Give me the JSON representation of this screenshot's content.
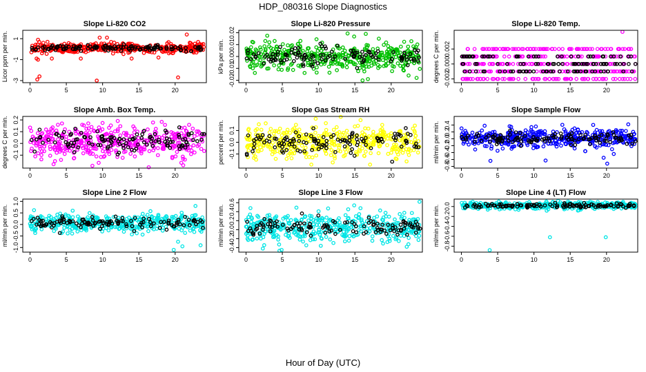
{
  "figure": {
    "title": "HDP_080316  Slope Diagnostics",
    "xlabel": "Hour of Day (UTC)"
  },
  "chart_data": [
    {
      "id": "co2",
      "type": "scatter",
      "title": "Slope Li-820 CO2",
      "ylabel": "Licor ppm per min.",
      "xlim": [
        -1,
        24.3
      ],
      "ylim": [
        -3.2,
        1.8
      ],
      "xticks": [
        0,
        5,
        10,
        15,
        20
      ],
      "yticks": [
        -3,
        -1,
        1
      ],
      "yticklabels": [
        "-3",
        "-1",
        "1"
      ],
      "color": "#ff0000",
      "center": 0.1,
      "spread": 0.22,
      "count": 420,
      "black_count": 120,
      "outliers": [
        [
          1.0,
          -2.9
        ],
        [
          1.3,
          -2.6
        ],
        [
          0.9,
          -0.9
        ],
        [
          1.1,
          -1.0
        ],
        [
          3.0,
          -0.9
        ],
        [
          7.0,
          -0.9
        ],
        [
          9.2,
          -3.0
        ],
        [
          9.6,
          1.1
        ],
        [
          10.6,
          1.1
        ],
        [
          14.0,
          -0.9
        ],
        [
          16.2,
          -0.2
        ],
        [
          17.7,
          -0.8
        ],
        [
          20.4,
          -2.7
        ],
        [
          21.6,
          1.4
        ],
        [
          1.1,
          0.9
        ]
      ]
    },
    {
      "id": "pressure",
      "type": "scatter",
      "title": "Slope Li-820 Pressure",
      "ylabel": "kPa per min.",
      "xlim": [
        -1,
        24.3
      ],
      "ylim": [
        -0.022,
        0.022
      ],
      "xticks": [
        0,
        5,
        10,
        15,
        20
      ],
      "yticks": [
        -0.02,
        -0.01,
        0.0,
        0.01,
        0.02
      ],
      "yticklabels": [
        "-0.02",
        "-0.01",
        "0.00",
        "0.01",
        "0.02"
      ],
      "color": "#00c000",
      "center": 0.0,
      "spread": 0.006,
      "count": 420,
      "black_count": 120,
      "outliers": [
        [
          16.5,
          0.019
        ],
        [
          16.8,
          -0.019
        ],
        [
          22.4,
          -0.016
        ],
        [
          23.5,
          -0.018
        ],
        [
          18.3,
          0.015
        ],
        [
          3.2,
          0.012
        ]
      ]
    },
    {
      "id": "temp",
      "type": "scatter",
      "title": "Slope Li-820 Temp.",
      "ylabel": "degrees C per min.",
      "xlim": [
        -1,
        24.3
      ],
      "ylim": [
        -0.0025,
        0.0045
      ],
      "xticks": [
        0,
        5,
        10,
        15,
        20
      ],
      "yticks": [
        -0.002,
        0.0,
        0.002
      ],
      "yticklabels": [
        "-0.002",
        "0.000",
        "0.002"
      ],
      "color": "#ff00ff",
      "levels": [
        -0.002,
        -0.001,
        0.0,
        0.001,
        0.002
      ],
      "count": 420,
      "black_count": 120,
      "outliers": [
        [
          22.2,
          0.0043
        ]
      ]
    },
    {
      "id": "boxtemp",
      "type": "scatter",
      "title": "Slope Amb. Box Temp.",
      "ylabel": "degrees C per min.",
      "xlim": [
        -1,
        24.3
      ],
      "ylim": [
        -0.21,
        0.23
      ],
      "xticks": [
        0,
        5,
        10,
        15,
        20
      ],
      "yticks": [
        -0.1,
        0.0,
        0.1,
        0.2
      ],
      "yticklabels": [
        "-0.1",
        "0.0",
        "0.1",
        "0.2"
      ],
      "color": "#ff00ff",
      "center": 0.02,
      "spread": 0.07,
      "count": 420,
      "black_count": 120,
      "outliers": [
        [
          8.6,
          -0.19
        ],
        [
          4.4,
          0.17
        ]
      ]
    },
    {
      "id": "rh",
      "type": "scatter",
      "title": "Slope Gas Stream RH",
      "ylabel": "percent per min.",
      "xlim": [
        -1,
        24.3
      ],
      "ylim": [
        -0.22,
        0.22
      ],
      "xticks": [
        0,
        5,
        10,
        15,
        20
      ],
      "yticks": [
        -0.1,
        0.0,
        0.1
      ],
      "yticklabels": [
        "-0.1",
        "0.0",
        "0.1"
      ],
      "color": "#ffff00",
      "center": 0.0,
      "spread": 0.075,
      "count": 420,
      "black_count": 120,
      "outliers": [
        [
          9.6,
          0.2
        ],
        [
          9.0,
          -0.19
        ]
      ]
    },
    {
      "id": "sampleflow",
      "type": "scatter",
      "title": "Slope Sample Flow",
      "ylabel": "ml/min per min.",
      "xlim": [
        -1,
        24.3
      ],
      "ylim": [
        -0.85,
        0.65
      ],
      "xticks": [
        0,
        5,
        10,
        15,
        20
      ],
      "yticks": [
        -0.8,
        -0.6,
        -0.4,
        -0.2,
        0.0,
        0.2,
        0.4
      ],
      "yticklabels": [
        "-0.8",
        "-0.6",
        "-0.4",
        "-0.2",
        "0.0",
        "0.2",
        "0.4"
      ],
      "color": "#0000ff",
      "center": 0.02,
      "spread": 0.13,
      "count": 420,
      "black_count": 120,
      "outliers": [
        [
          4.0,
          -0.64
        ],
        [
          11.6,
          -0.63
        ],
        [
          20.1,
          -0.72
        ],
        [
          19.6,
          -0.55
        ],
        [
          21.0,
          -0.44
        ],
        [
          23.0,
          0.42
        ],
        [
          3.2,
          0.38
        ]
      ]
    },
    {
      "id": "line2",
      "type": "scatter",
      "title": "Slope Line 2 Flow",
      "ylabel": "ml/min per min.",
      "xlim": [
        -1,
        24.3
      ],
      "ylim": [
        -1.2,
        1.1
      ],
      "xticks": [
        0,
        5,
        10,
        15,
        20
      ],
      "yticks": [
        -1.0,
        -0.5,
        0.0,
        0.5,
        1.0
      ],
      "yticklabels": [
        "-1.0",
        "-0.5",
        "0.0",
        "0.5",
        "1.0"
      ],
      "color": "#00e5e5",
      "center": 0.05,
      "spread": 0.2,
      "count": 420,
      "black_count": 120,
      "outliers": [
        [
          19.8,
          -1.1
        ],
        [
          21.0,
          -0.95
        ],
        [
          23.5,
          -0.9
        ],
        [
          20.4,
          -0.75
        ],
        [
          22.8,
          0.8
        ]
      ]
    },
    {
      "id": "line3",
      "type": "scatter",
      "title": "Slope Line 3 Flow",
      "ylabel": "ml/min per min.",
      "xlim": [
        -1,
        24.3
      ],
      "ylim": [
        -0.5,
        0.68
      ],
      "xticks": [
        0,
        5,
        10,
        15,
        20
      ],
      "yticks": [
        -0.4,
        -0.2,
        0.0,
        0.2,
        0.4,
        0.6
      ],
      "yticklabels": [
        "-0.4",
        "-0.2",
        "0.0",
        "0.2",
        "0.4",
        "0.6"
      ],
      "color": "#00e5e5",
      "center": 0.05,
      "spread": 0.16,
      "count": 420,
      "black_count": 120,
      "outliers": [
        [
          4.6,
          -0.47
        ],
        [
          4.9,
          -0.45
        ],
        [
          23.9,
          0.62
        ],
        [
          14.9,
          0.54
        ]
      ]
    },
    {
      "id": "line4",
      "type": "scatter",
      "title": "Slope Line 4 (LT) Flow",
      "ylabel": "ml/min per min.",
      "xlim": [
        -1,
        24.3
      ],
      "ylim": [
        -0.92,
        0.15
      ],
      "xticks": [
        0,
        5,
        10,
        15,
        20
      ],
      "yticks": [
        -0.8,
        -0.6,
        -0.4,
        -0.2,
        0.0
      ],
      "yticklabels": [
        "-0.8",
        "-0.6",
        "-0.4",
        "-0.2",
        "0.0"
      ],
      "color": "#00e5e5",
      "center": 0.02,
      "spread": 0.035,
      "count": 420,
      "black_count": 120,
      "outliers": [
        [
          3.9,
          -0.88
        ],
        [
          12.2,
          -0.62
        ],
        [
          19.9,
          -0.62
        ]
      ]
    }
  ]
}
